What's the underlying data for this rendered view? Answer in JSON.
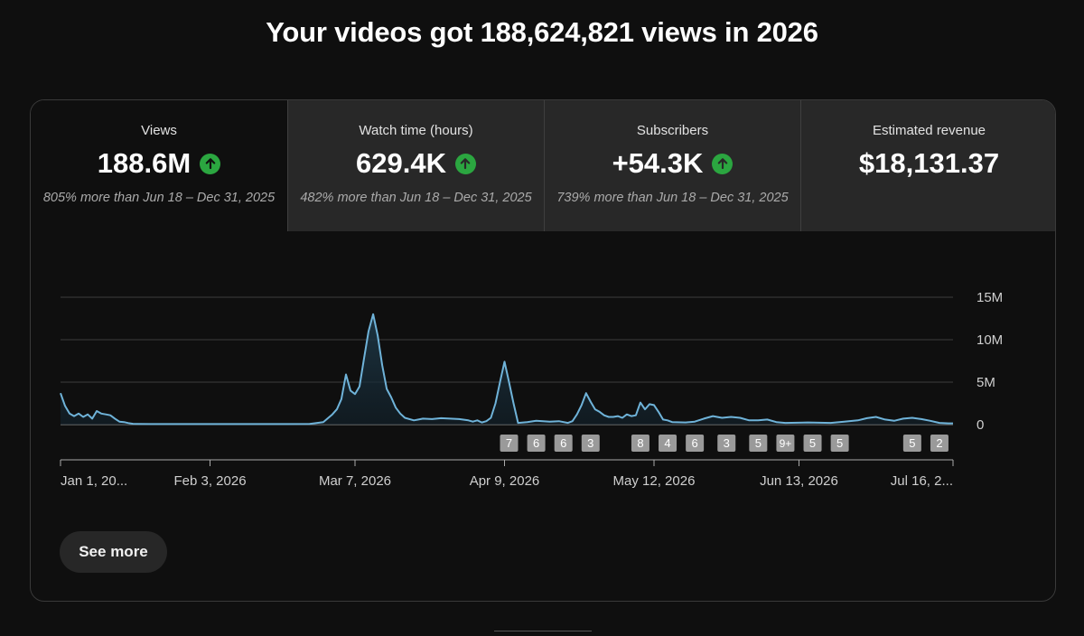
{
  "headline": "Your videos got 188,624,821 views in 2026",
  "tabs": [
    {
      "label": "Views",
      "value": "188.6M",
      "trend": "up",
      "comparison": "805% more than Jun 18 – Dec 31, 2025",
      "selected": true
    },
    {
      "label": "Watch time (hours)",
      "value": "629.4K",
      "trend": "up",
      "comparison": "482% more than Jun 18 – Dec 31, 2025",
      "selected": false
    },
    {
      "label": "Subscribers",
      "value": "+54.3K",
      "trend": "up",
      "comparison": "739% more than Jun 18 – Dec 31, 2025",
      "selected": false
    },
    {
      "label": "Estimated revenue",
      "value": "$18,131.37",
      "trend": "",
      "comparison": "",
      "selected": false
    }
  ],
  "chart_data": {
    "type": "area",
    "title": "",
    "xlabel": "",
    "ylabel": "",
    "ylim": [
      0,
      15000000
    ],
    "y_ticks": [
      {
        "value": 15000000,
        "label": "15M"
      },
      {
        "value": 10000000,
        "label": "10M"
      },
      {
        "value": 5000000,
        "label": "5M"
      },
      {
        "value": 0,
        "label": "0"
      }
    ],
    "x_ticks": [
      {
        "day": 0,
        "label": "Jan 1, 20..."
      },
      {
        "day": 33,
        "label": "Feb 3, 2026"
      },
      {
        "day": 65,
        "label": "Mar 7, 2026"
      },
      {
        "day": 98,
        "label": "Apr 9, 2026"
      },
      {
        "day": 131,
        "label": "May 12, 2026"
      },
      {
        "day": 163,
        "label": "Jun 13, 2026"
      },
      {
        "day": 196,
        "label": "Jul 16, 2..."
      }
    ],
    "x_range": [
      0,
      197
    ],
    "grid": true,
    "series": [
      {
        "name": "Views",
        "color": "#6fb3d9",
        "points": [
          [
            0,
            3700000
          ],
          [
            1,
            2200000
          ],
          [
            2,
            1300000
          ],
          [
            3,
            1000000
          ],
          [
            4,
            1300000
          ],
          [
            5,
            900000
          ],
          [
            6,
            1200000
          ],
          [
            7,
            700000
          ],
          [
            8,
            1600000
          ],
          [
            9,
            1300000
          ],
          [
            10,
            1200000
          ],
          [
            11,
            1100000
          ],
          [
            12,
            700000
          ],
          [
            13,
            350000
          ],
          [
            14,
            300000
          ],
          [
            15,
            180000
          ],
          [
            16,
            100000
          ],
          [
            17,
            80000
          ],
          [
            20,
            60000
          ],
          [
            30,
            60000
          ],
          [
            40,
            60000
          ],
          [
            50,
            60000
          ],
          [
            55,
            80000
          ],
          [
            58,
            300000
          ],
          [
            60,
            1200000
          ],
          [
            61,
            1800000
          ],
          [
            62,
            3000000
          ],
          [
            63,
            5900000
          ],
          [
            64,
            4000000
          ],
          [
            65,
            3600000
          ],
          [
            66,
            4500000
          ],
          [
            67,
            7800000
          ],
          [
            68,
            11000000
          ],
          [
            69,
            13000000
          ],
          [
            70,
            10500000
          ],
          [
            71,
            7000000
          ],
          [
            72,
            4200000
          ],
          [
            73,
            3200000
          ],
          [
            74,
            2000000
          ],
          [
            75,
            1300000
          ],
          [
            76,
            800000
          ],
          [
            78,
            500000
          ],
          [
            79,
            600000
          ],
          [
            80,
            700000
          ],
          [
            82,
            650000
          ],
          [
            84,
            750000
          ],
          [
            86,
            700000
          ],
          [
            88,
            650000
          ],
          [
            90,
            500000
          ],
          [
            91,
            350000
          ],
          [
            92,
            500000
          ],
          [
            93,
            250000
          ],
          [
            94,
            400000
          ],
          [
            95,
            800000
          ],
          [
            96,
            2500000
          ],
          [
            97,
            5000000
          ],
          [
            98,
            7400000
          ],
          [
            99,
            5000000
          ],
          [
            100,
            2500000
          ],
          [
            101,
            200000
          ],
          [
            103,
            300000
          ],
          [
            105,
            450000
          ],
          [
            108,
            350000
          ],
          [
            110,
            400000
          ],
          [
            112,
            200000
          ],
          [
            113,
            400000
          ],
          [
            114,
            1200000
          ],
          [
            115,
            2300000
          ],
          [
            116,
            3700000
          ],
          [
            117,
            2700000
          ],
          [
            118,
            1800000
          ],
          [
            119,
            1500000
          ],
          [
            120,
            1100000
          ],
          [
            121,
            900000
          ],
          [
            122,
            900000
          ],
          [
            123,
            1000000
          ],
          [
            124,
            800000
          ],
          [
            125,
            1200000
          ],
          [
            126,
            1000000
          ],
          [
            127,
            1100000
          ],
          [
            128,
            2600000
          ],
          [
            129,
            1800000
          ],
          [
            130,
            2400000
          ],
          [
            131,
            2300000
          ],
          [
            132,
            1500000
          ],
          [
            133,
            600000
          ],
          [
            134,
            500000
          ],
          [
            135,
            300000
          ],
          [
            138,
            250000
          ],
          [
            140,
            350000
          ],
          [
            142,
            700000
          ],
          [
            144,
            1000000
          ],
          [
            146,
            800000
          ],
          [
            148,
            900000
          ],
          [
            150,
            800000
          ],
          [
            152,
            500000
          ],
          [
            154,
            500000
          ],
          [
            156,
            600000
          ],
          [
            158,
            300000
          ],
          [
            160,
            200000
          ],
          [
            165,
            250000
          ],
          [
            170,
            200000
          ],
          [
            173,
            350000
          ],
          [
            176,
            500000
          ],
          [
            178,
            750000
          ],
          [
            180,
            900000
          ],
          [
            182,
            600000
          ],
          [
            184,
            450000
          ],
          [
            186,
            700000
          ],
          [
            188,
            800000
          ],
          [
            190,
            650000
          ],
          [
            192,
            450000
          ],
          [
            194,
            200000
          ],
          [
            196,
            150000
          ],
          [
            197,
            150000
          ]
        ]
      }
    ],
    "markers": [
      {
        "day": 99,
        "label": "7"
      },
      {
        "day": 105,
        "label": "6"
      },
      {
        "day": 111,
        "label": "6"
      },
      {
        "day": 117,
        "label": "3"
      },
      {
        "day": 128,
        "label": "8"
      },
      {
        "day": 134,
        "label": "4"
      },
      {
        "day": 140,
        "label": "6"
      },
      {
        "day": 147,
        "label": "3"
      },
      {
        "day": 154,
        "label": "5"
      },
      {
        "day": 160,
        "label": "9+"
      },
      {
        "day": 166,
        "label": "5"
      },
      {
        "day": 172,
        "label": "5"
      },
      {
        "day": 188,
        "label": "5"
      },
      {
        "day": 194,
        "label": "2"
      }
    ]
  },
  "see_more_label": "See more",
  "colors": {
    "background": "#0f0f0f",
    "selected_tab_bg": "#0f0f0f",
    "tab_bg": "#282828",
    "trend_up": "#2ba640",
    "line": "#6fb3d9",
    "marker_bg": "#9a9a9a"
  }
}
